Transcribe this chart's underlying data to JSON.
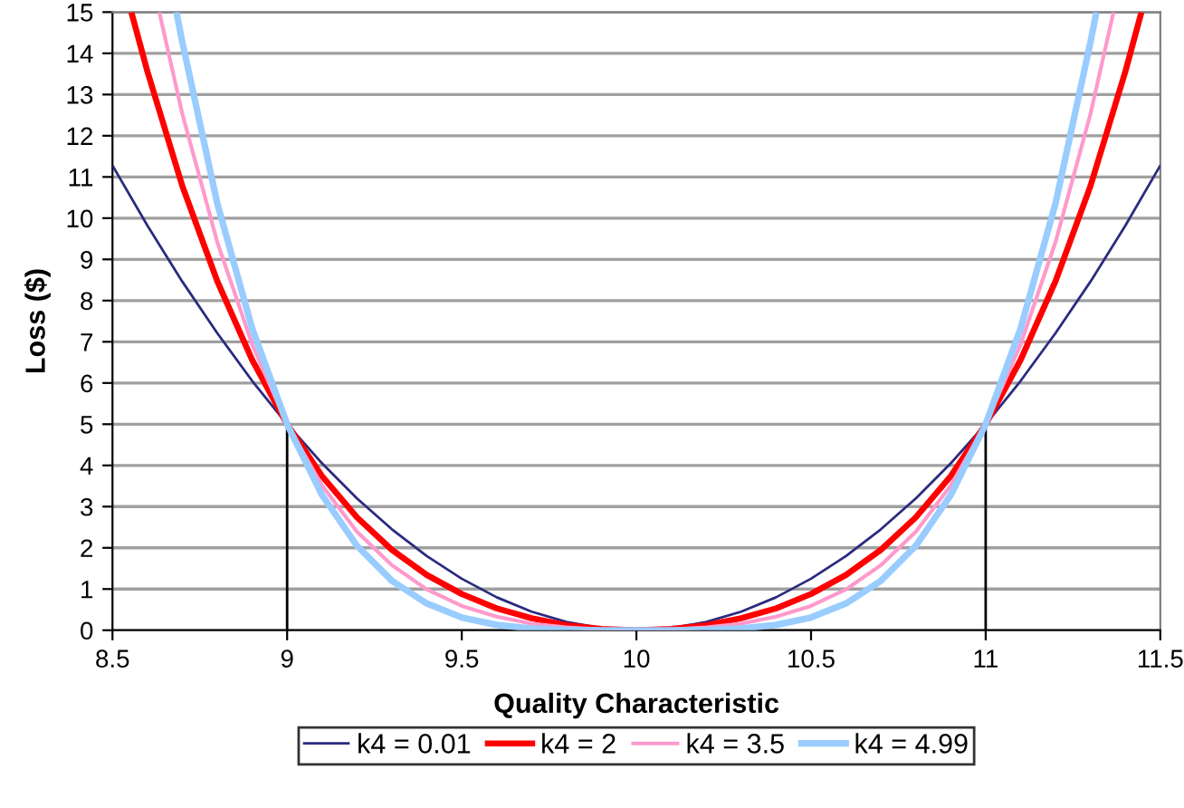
{
  "chart_data": {
    "type": "line",
    "xlabel": "Quality Characteristic",
    "ylabel": "Loss ($)",
    "xlim": [
      8.5,
      11.5
    ],
    "xticks": [
      8.5,
      9,
      9.5,
      10,
      10.5,
      11,
      11.5
    ],
    "ylim": [
      0,
      15
    ],
    "yticks": [
      0,
      1,
      2,
      3,
      4,
      5,
      6,
      7,
      8,
      9,
      10,
      11,
      12,
      13,
      14,
      15
    ],
    "grid": "y",
    "legend": "bottom",
    "marker": "none",
    "line_style": "solid",
    "series": [
      {
        "color": "#000000",
        "x": [
          9,
          9
        ],
        "values": [
          0,
          5
        ]
      },
      {
        "color": "#000000",
        "x": [
          11,
          11
        ],
        "values": [
          0,
          5
        ]
      },
      {
        "name": "k4 = 0.01",
        "color": "#2b2b7f",
        "x": [
          8.5,
          8.6,
          8.7,
          8.8,
          8.9,
          9.0,
          9.1,
          9.2,
          9.3,
          9.4,
          9.5,
          9.6,
          9.7,
          9.8,
          9.9,
          10.0,
          10.1,
          10.2,
          10.3,
          10.4,
          10.5,
          10.6,
          10.7,
          10.8,
          10.9,
          11.0,
          11.1,
          11.2,
          11.3,
          11.4,
          11.5
        ],
        "values": [
          11.28,
          9.82,
          8.46,
          7.21,
          6.05,
          5,
          4.05,
          3.2,
          2.45,
          1.8,
          1.25,
          0.8,
          0.45,
          0.2,
          0.05,
          0,
          0.05,
          0.2,
          0.45,
          0.8,
          1.25,
          1.8,
          2.45,
          3.2,
          4.05,
          5,
          6.05,
          7.21,
          8.46,
          9.82,
          11.28
        ]
      },
      {
        "name": "k4 = 2",
        "color": "#ff0000",
        "x": [
          8.554,
          8.6,
          8.7,
          8.8,
          8.9,
          9.0,
          9.1,
          9.2,
          9.3,
          9.4,
          9.5,
          9.6,
          9.7,
          9.8,
          9.9,
          10.0,
          10.1,
          10.2,
          10.3,
          10.4,
          10.5,
          10.6,
          10.7,
          10.8,
          10.9,
          11.0,
          11.1,
          11.2,
          11.3,
          11.4,
          11.446
        ],
        "values": [
          15,
          13.56,
          10.78,
          8.47,
          6.56,
          5,
          3.74,
          2.74,
          1.95,
          1.34,
          0.88,
          0.53,
          0.29,
          0.12,
          0.03,
          0,
          0.03,
          0.12,
          0.29,
          0.53,
          0.88,
          1.34,
          1.95,
          2.74,
          3.74,
          5,
          6.56,
          8.47,
          10.78,
          13.56,
          15
        ]
      },
      {
        "name": "k4 = 3.5",
        "color": "#ff99cc",
        "x": [
          8.634,
          8.7,
          8.8,
          8.9,
          9.0,
          9.1,
          9.2,
          9.3,
          9.4,
          9.5,
          9.6,
          9.7,
          9.8,
          9.9,
          10.0,
          10.1,
          10.2,
          10.3,
          10.4,
          10.5,
          10.6,
          10.7,
          10.8,
          10.9,
          11.0,
          11.1,
          11.2,
          11.3,
          11.366
        ],
        "values": [
          15,
          12.53,
          9.42,
          6.94,
          5,
          3.51,
          2.39,
          1.58,
          0.99,
          0.59,
          0.33,
          0.16,
          0.07,
          0.02,
          0,
          0.02,
          0.07,
          0.16,
          0.33,
          0.59,
          0.99,
          1.58,
          2.39,
          3.51,
          5,
          6.94,
          9.42,
          12.53,
          15
        ]
      },
      {
        "name": "k4 = 4.99",
        "color": "#99ccff",
        "x": [
          8.683,
          8.7,
          8.8,
          8.9,
          9.0,
          9.1,
          9.2,
          9.3,
          9.4,
          9.5,
          9.6,
          9.7,
          9.8,
          9.9,
          10.0,
          10.1,
          10.2,
          10.3,
          10.4,
          10.5,
          10.6,
          10.7,
          10.8,
          10.9,
          11.0,
          11.1,
          11.2,
          11.3,
          11.317
        ],
        "values": [
          15,
          14.27,
          10.36,
          7.32,
          5,
          3.28,
          2.05,
          1.2,
          0.65,
          0.31,
          0.13,
          0.04,
          0.01,
          0,
          0,
          0,
          0.01,
          0.04,
          0.13,
          0.31,
          0.65,
          1.2,
          2.05,
          3.28,
          5,
          7.32,
          10.36,
          14.27,
          15
        ]
      }
    ]
  }
}
